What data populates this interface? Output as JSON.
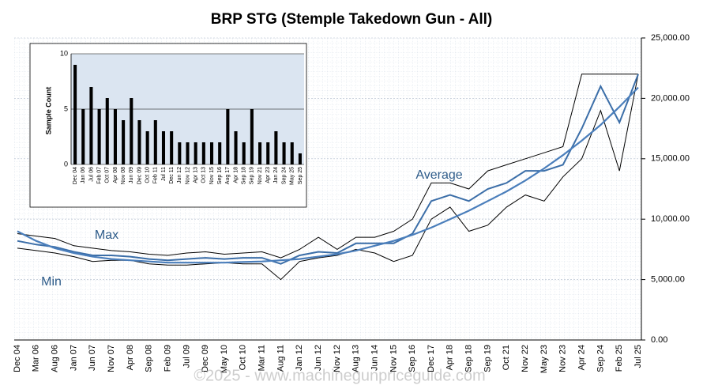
{
  "chart_data": [
    {
      "type": "line",
      "title": "BRP STG (Stemple Takedown Gun - All)",
      "categories": [
        "Dec 04",
        "Mar 06",
        "Aug 06",
        "Jan 07",
        "Jun 07",
        "Nov 07",
        "Apr 08",
        "Sep 08",
        "Feb 09",
        "Jul 09",
        "Dec 09",
        "May 10",
        "Oct 10",
        "Mar 11",
        "Aug 11",
        "Jan 12",
        "Jun 12",
        "Nov 12",
        "Aug 13",
        "Jun 14",
        "Nov 15",
        "Sep 16",
        "Dec 17",
        "Apr 18",
        "Sep 18",
        "Sep 19",
        "Oct 21",
        "Nov 22",
        "May 23",
        "Nov 23",
        "Apr 24",
        "Sep 24",
        "Feb 25",
        "Jul 25"
      ],
      "series": [
        {
          "name": "Max",
          "color": "#000000",
          "values": [
            8800,
            8600,
            8400,
            7800,
            7600,
            7400,
            7300,
            7100,
            7000,
            7200,
            7300,
            7100,
            7200,
            7300,
            6800,
            7500,
            8500,
            7500,
            8500,
            8500,
            9000,
            10000,
            13000,
            13000,
            12500,
            14000,
            14500,
            15000,
            15500,
            16000,
            22000,
            22000,
            22000,
            22000
          ]
        },
        {
          "name": "Min",
          "color": "#000000",
          "values": [
            7600,
            7400,
            7200,
            6900,
            6500,
            6600,
            6600,
            6300,
            6200,
            6200,
            6300,
            6400,
            6300,
            6300,
            5000,
            6500,
            6800,
            7000,
            7500,
            7200,
            6500,
            7000,
            10000,
            11000,
            9000,
            9500,
            11000,
            12000,
            11500,
            13500,
            15000,
            19000,
            14000,
            22000
          ]
        },
        {
          "name": "Average",
          "color": "#3b6ea8",
          "values": [
            8200,
            7900,
            7700,
            7300,
            7000,
            7000,
            6900,
            6700,
            6600,
            6700,
            6800,
            6700,
            6800,
            6800,
            6300,
            7000,
            7300,
            7200,
            8000,
            8000,
            8000,
            8800,
            11500,
            12000,
            11500,
            12500,
            13000,
            14000,
            14000,
            14500,
            17500,
            21000,
            18000,
            22000
          ]
        },
        {
          "color": "#4a7ebb",
          "values": [
            9000,
            8200,
            7600,
            7200,
            6900,
            6700,
            6600,
            6500,
            6400,
            6400,
            6400,
            6400,
            6450,
            6500,
            6600,
            6700,
            6900,
            7100,
            7400,
            7800,
            8200,
            8700,
            9300,
            10000,
            10700,
            11500,
            12300,
            13200,
            14200,
            15300,
            16500,
            17800,
            19300,
            20900
          ]
        }
      ],
      "ylim": [
        0,
        25000
      ],
      "yticks": [
        {
          "value": 0,
          "label": "0.00"
        },
        {
          "value": 5000,
          "label": "5,000.00"
        },
        {
          "value": 10000,
          "label": "10,000.00"
        },
        {
          "value": 15000,
          "label": "15,000.00"
        },
        {
          "value": 20000,
          "label": "20,000.00"
        },
        {
          "value": 25000,
          "label": "25,000.00"
        }
      ],
      "grid": true
    },
    {
      "type": "bar",
      "ylabel": "Sample Count",
      "categories": [
        "Dec 04",
        "Jan 06",
        "Jul 06",
        "Feb 07",
        "Oct 07",
        "Apr 08",
        "Nov 08",
        "Jun 09",
        "Dec 09",
        "Oct 10",
        "Feb 11",
        "Jul 11",
        "Dec 11",
        "Jun 12",
        "Nov 12",
        "Apr 13",
        "Oct 13",
        "Nov 15",
        "Sep 16",
        "Aug 17",
        "Apr 18",
        "Sep 18",
        "Sep 19",
        "Nov 21",
        "Apr 23",
        "Jan 24",
        "Sep 24",
        "May 25",
        "Sep 25"
      ],
      "values": [
        9,
        5,
        7,
        5,
        6,
        5,
        4,
        6,
        4,
        3,
        4,
        3,
        3,
        2,
        2,
        2,
        2,
        2,
        2,
        5,
        3,
        2,
        5,
        2,
        2,
        3,
        2,
        2,
        1
      ],
      "color": "#000000",
      "ylim": [
        0,
        10
      ],
      "yticks": [
        0,
        5,
        10
      ],
      "grid": true
    }
  ],
  "watermark": "©2025 - www.machinegunpriceguide.com"
}
